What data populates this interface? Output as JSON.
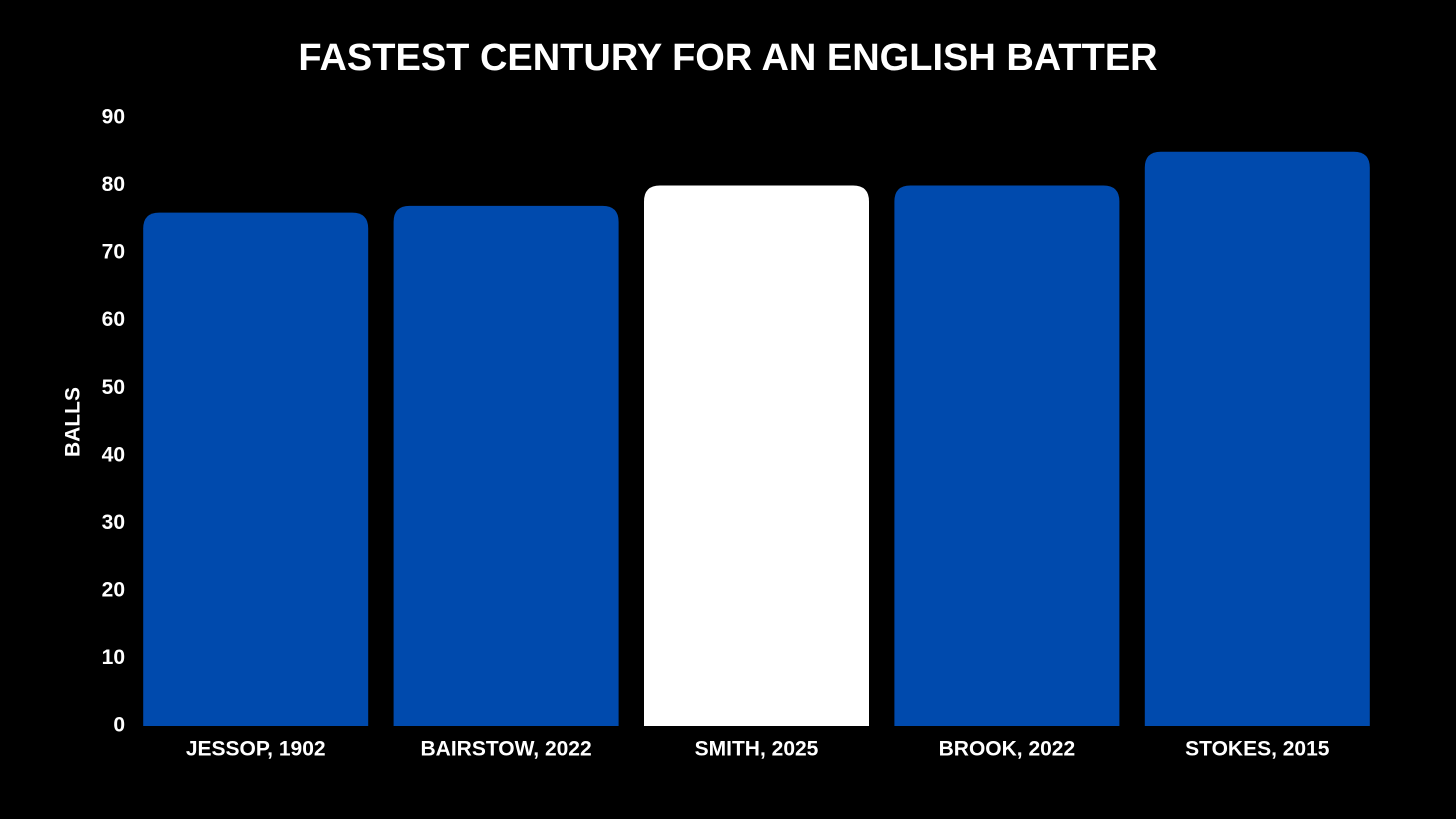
{
  "chart_data": {
    "type": "bar",
    "title": "FASTEST CENTURY FOR AN ENGLISH BATTER",
    "y_label": "BALLS",
    "categories": [
      "JESSOP, 1902",
      "BAIRSTOW, 2022",
      "SMITH, 2025",
      "BROOK, 2022",
      "STOKES, 2015"
    ],
    "values": [
      76,
      77,
      80,
      80,
      85
    ],
    "colors": [
      "#004aad",
      "#004aad",
      "#ffffff",
      "#004aad",
      "#004aad"
    ],
    "ylim": [
      0,
      90
    ],
    "yticks": [
      0,
      10,
      20,
      30,
      40,
      50,
      60,
      70,
      80,
      90
    ],
    "grid": false
  }
}
